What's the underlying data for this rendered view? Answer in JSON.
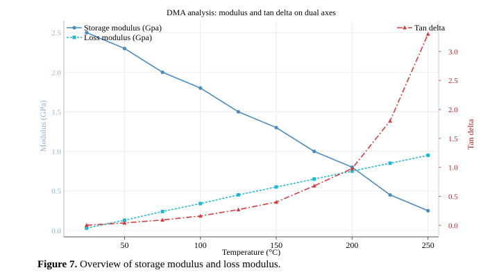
{
  "chart_data": {
    "type": "line",
    "title": "DMA analysis: modulus and tan delta on dual axes",
    "xlabel": "Temperature (°C)",
    "ylabel_left": "Modulus (GPa)",
    "ylabel_right": "Tan delta",
    "x": [
      25,
      50,
      75,
      100,
      125,
      150,
      175,
      200,
      225,
      250
    ],
    "xlim": [
      10,
      257
    ],
    "xticks": [
      50,
      100,
      150,
      200,
      250
    ],
    "ylim_left": [
      -0.08,
      2.65
    ],
    "yticks_left": [
      "0.0",
      "0.5",
      "1.0",
      "1.5",
      "2.0",
      "2.5"
    ],
    "ylim_right": [
      -0.2,
      3.53
    ],
    "yticks_right": [
      "0.0",
      "0.5",
      "1.0",
      "1.5",
      "2.0",
      "2.5",
      "3.0"
    ],
    "grid": true,
    "series": [
      {
        "name": "Storage modulus  (Gpa)",
        "axis": "left",
        "color": "#4a8bbf",
        "style": "solid",
        "marker": "circle",
        "values": [
          2.5,
          2.3,
          2.0,
          1.8,
          1.5,
          1.3,
          1.0,
          0.8,
          0.45,
          0.25
        ]
      },
      {
        "name": "Loss modulus (Gpa)",
        "axis": "left",
        "color": "#22b8d2",
        "style": "dashed",
        "marker": "square",
        "values": [
          0.03,
          0.13,
          0.24,
          0.34,
          0.45,
          0.55,
          0.65,
          0.75,
          0.85,
          0.95
        ]
      },
      {
        "name": "Tan delta",
        "axis": "right",
        "color": "#d43d3d",
        "style": "dashdot",
        "marker": "triangle",
        "values": [
          0.0,
          0.04,
          0.09,
          0.16,
          0.27,
          0.4,
          0.68,
          0.98,
          1.8,
          3.3
        ]
      }
    ],
    "legend_left": "top-left",
    "legend_right": "top-right"
  },
  "caption": {
    "label": "Figure 7.",
    "text": " Overview of storage modulus and loss modulus."
  }
}
